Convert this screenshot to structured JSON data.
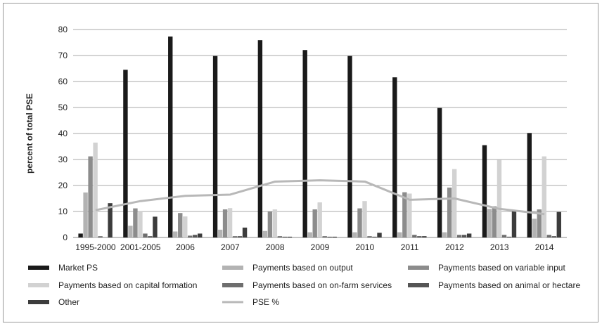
{
  "chart_data": {
    "type": "bar",
    "title": "",
    "xlabel": "",
    "ylabel": "percent of total PSE",
    "ylim": [
      0,
      80
    ],
    "yticks": [
      0,
      10,
      20,
      30,
      40,
      50,
      60,
      70,
      80
    ],
    "grid": true,
    "legend_position": "bottom",
    "categories": [
      "1995-2000",
      "2001-2005",
      "2006",
      "2007",
      "2008",
      "2009",
      "2010",
      "2011",
      "2012",
      "2013",
      "2014"
    ],
    "series": [
      {
        "name": "Market PS",
        "kind": "bar",
        "color": "#1a1a1a",
        "values": [
          1.5,
          64.5,
          77.3,
          69.8,
          75.9,
          72.1,
          69.8,
          61.6,
          49.8,
          35.5,
          40.2
        ]
      },
      {
        "name": "Payments based on output",
        "kind": "bar",
        "color": "#b3b3b3",
        "values": [
          17.3,
          4.5,
          2.3,
          3.0,
          2.5,
          2.0,
          2.0,
          2.0,
          2.0,
          11.0,
          7.2
        ]
      },
      {
        "name": "Payments based on variable input",
        "kind": "bar",
        "color": "#8c8c8c",
        "values": [
          31.2,
          11.2,
          9.4,
          10.8,
          10.0,
          10.8,
          11.2,
          17.4,
          19.2,
          12.0,
          10.8
        ]
      },
      {
        "name": "Payments based on capital formation",
        "kind": "bar",
        "color": "#d2d2d2",
        "values": [
          36.5,
          10.0,
          8.1,
          11.3,
          10.8,
          13.5,
          14.0,
          16.9,
          26.3,
          29.8,
          31.2
        ]
      },
      {
        "name": "Payments based on on-farm services",
        "kind": "bar",
        "color": "#6e6e6e",
        "values": [
          0.5,
          1.5,
          0.7,
          0.5,
          0.5,
          0.5,
          0.5,
          1.0,
          1.0,
          1.0,
          1.0
        ]
      },
      {
        "name": "Payments based on animal or hectare",
        "kind": "bar",
        "color": "#555555",
        "values": [
          0.0,
          0.5,
          1.0,
          0.5,
          0.3,
          0.3,
          0.3,
          0.5,
          1.0,
          0.3,
          0.5
        ]
      },
      {
        "name": "Other",
        "kind": "bar",
        "color": "#3c3c3c",
        "values": [
          13.2,
          8.0,
          1.5,
          3.8,
          0.3,
          0.3,
          1.8,
          0.5,
          1.5,
          10.5,
          9.8
        ]
      },
      {
        "name": "PSE %",
        "kind": "line",
        "color": "#b8b8b8",
        "values": [
          10.5,
          14.0,
          16.0,
          16.5,
          21.5,
          22.0,
          21.5,
          14.5,
          15.0,
          11.0,
          9.0
        ]
      }
    ]
  }
}
